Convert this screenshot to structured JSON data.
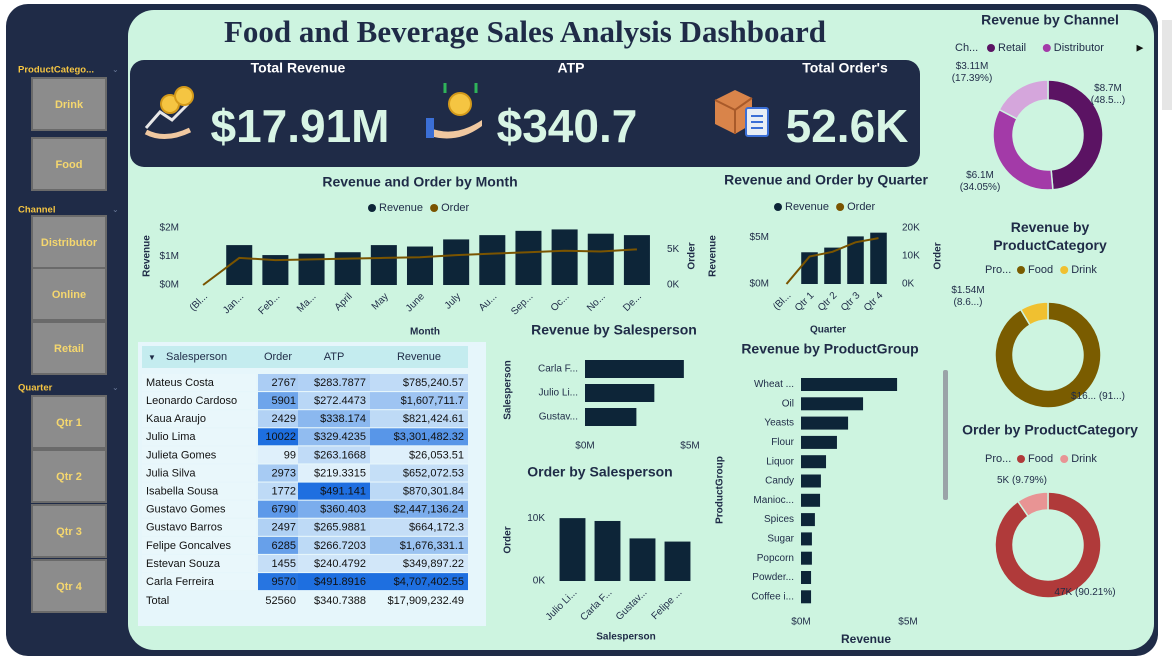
{
  "title": "Food and Beverage Sales Analysis Dashboard",
  "kpis": [
    {
      "label": "Total Revenue",
      "value": "$17.91M"
    },
    {
      "label": "ATP",
      "value": "$340.7"
    },
    {
      "label": "Total Order's",
      "value": "52.6K"
    }
  ],
  "slicers": [
    {
      "title": "ProductCatego...",
      "items": [
        "Drink",
        "Food"
      ]
    },
    {
      "title": "Channel",
      "items": [
        "Distributor",
        "Online",
        "Retail"
      ]
    },
    {
      "title": "Quarter",
      "items": [
        "Qtr 1",
        "Qtr 2",
        "Qtr 3",
        "Qtr 4"
      ]
    }
  ],
  "table": {
    "columns": [
      "Salesperson",
      "Order",
      "ATP",
      "Revenue"
    ],
    "rows": [
      [
        "Mateus Costa",
        "2767",
        "$283.7877",
        "$785,240.57"
      ],
      [
        "Leonardo Cardoso",
        "5901",
        "$272.4473",
        "$1,607,711.7"
      ],
      [
        "Kaua Araujo",
        "2429",
        "$338.174",
        "$821,424.61"
      ],
      [
        "Julio Lima",
        "10022",
        "$329.4235",
        "$3,301,482.32"
      ],
      [
        "Julieta Gomes",
        "99",
        "$263.1668",
        "$26,053.51"
      ],
      [
        "Julia Silva",
        "2973",
        "$219.3315",
        "$652,072.53"
      ],
      [
        "Isabella Sousa",
        "1772",
        "$491.141",
        "$870,301.84"
      ],
      [
        "Gustavo Gomes",
        "6790",
        "$360.403",
        "$2,447,136.24"
      ],
      [
        "Gustavo Barros",
        "2497",
        "$265.9881",
        "$664,172.3"
      ],
      [
        "Felipe Goncalves",
        "6285",
        "$266.7203",
        "$1,676,331.1"
      ],
      [
        "Estevan Souza",
        "1455",
        "$240.4792",
        "$349,897.22"
      ],
      [
        "Carla Ferreira",
        "9570",
        "$491.8916",
        "$4,707,402.55"
      ]
    ],
    "total": [
      "Total",
      "52560",
      "$340.7388",
      "$17,909,232.49"
    ]
  },
  "chart_data": [
    {
      "type": "combo",
      "title": "Revenue and Order by Month",
      "categories": [
        "(Bl...",
        "Jan...",
        "Feb...",
        "Ma...",
        "April",
        "May",
        "June",
        "July",
        "Au...",
        "Sep...",
        "Oc...",
        "No...",
        "De..."
      ],
      "series": [
        {
          "name": "Revenue",
          "type": "bar",
          "color": "#0d2538",
          "values": [
            null,
            1400000,
            1050000,
            1100000,
            1150000,
            1400000,
            1350000,
            1600000,
            1750000,
            1900000,
            1950000,
            1800000,
            1750000
          ]
        },
        {
          "name": "Order",
          "type": "line",
          "axis": "y2",
          "color": "#7a5400",
          "values": [
            0,
            3800,
            3500,
            3600,
            3700,
            3800,
            3900,
            4200,
            4400,
            4600,
            4800,
            4700,
            5000
          ]
        }
      ],
      "ylim": [
        0,
        2000000
      ],
      "yticks": [
        {
          "value": 0,
          "label": "$0M"
        },
        {
          "value": 1000000,
          "label": "$1M"
        },
        {
          "value": 2000000,
          "label": "$2M"
        }
      ],
      "y2lim": [
        0,
        8000
      ],
      "y2ticks": [
        {
          "value": 0,
          "label": "0K"
        },
        {
          "value": 5000,
          "label": "5K"
        }
      ],
      "x_label": "Month",
      "y_label": "Revenue",
      "y2_label": "Order",
      "grid": false
    },
    {
      "type": "combo",
      "title": "Revenue and Order by Quarter",
      "categories": [
        "(Bl...",
        "Qtr 1",
        "Qtr 2",
        "Qtr 3",
        "Qtr 4"
      ],
      "series": [
        {
          "name": "Revenue",
          "type": "bar",
          "color": "#0d2538",
          "values": [
            null,
            3400000,
            3900000,
            5100000,
            5500000
          ]
        },
        {
          "name": "Order",
          "type": "line",
          "axis": "y2",
          "color": "#7a5400",
          "values": [
            0,
            9800,
            11500,
            14900,
            16400
          ]
        }
      ],
      "ylim": [
        0,
        6000000
      ],
      "yticks": [
        {
          "value": 0,
          "label": "$0M"
        },
        {
          "value": 5000000,
          "label": "$5M"
        }
      ],
      "y2lim": [
        0,
        20000
      ],
      "y2ticks": [
        {
          "value": 0,
          "label": "0K"
        },
        {
          "value": 10000,
          "label": "10K"
        },
        {
          "value": 20000,
          "label": "20K"
        }
      ],
      "x_label": "Quarter",
      "y_label": "Revenue",
      "y2_label": "Order",
      "grid": false
    },
    {
      "type": "hbar",
      "title": "Revenue by Salesperson",
      "categories": [
        "Carla F...",
        "Julio Li...",
        "Gustav..."
      ],
      "values": [
        4707402.55,
        3301482.32,
        2447136.24
      ],
      "color": "#0d2538",
      "xlim": [
        0,
        5000000
      ],
      "xticks": [
        {
          "value": 0,
          "label": "$0M"
        },
        {
          "value": 5000000,
          "label": "$5M"
        }
      ],
      "y_label": "Salesperson",
      "grid": false
    },
    {
      "type": "bar",
      "title": "Order by Salesperson",
      "categories": [
        "Julio Li...",
        "Carla F...",
        "Gustav...",
        "Felipe ..."
      ],
      "values": [
        10022,
        9570,
        6790,
        6285
      ],
      "color": "#0d2538",
      "ylim": [
        0,
        11000
      ],
      "yticks": [
        {
          "value": 0,
          "label": "0K"
        },
        {
          "value": 10000,
          "label": "10K"
        }
      ],
      "x_label": "Salesperson",
      "y_label": "Order",
      "grid": false
    },
    {
      "type": "hbar",
      "title": "Revenue by ProductGroup",
      "categories": [
        "Wheat ...",
        "Oil",
        "Yeasts",
        "Flour",
        "Liquor",
        "Candy",
        "Manioc...",
        "Spices",
        "Sugar",
        "Popcorn",
        "Powder...",
        "Coffee i..."
      ],
      "values": [
        4490000,
        2900000,
        2200000,
        1680000,
        1170000,
        930000,
        890000,
        650000,
        510000,
        510000,
        470000,
        470000
      ],
      "color": "#0d2538",
      "xlim": [
        0,
        5000000
      ],
      "xticks": [
        {
          "value": 0,
          "label": "$0M"
        },
        {
          "value": 5000000,
          "label": "$5M"
        }
      ],
      "x_label": "Revenue",
      "y_label": "ProductGroup",
      "grid": false
    },
    {
      "type": "donut",
      "title": "Revenue by Channel",
      "legend_title": "Ch...",
      "categories": [
        "Retail",
        "Distributor",
        null
      ],
      "values": [
        8700000,
        6100000,
        3110000
      ],
      "value_labels": [
        "$8.7M (48.5...)",
        "$6.1M (34.05%)",
        "$3.11M (17.39%)"
      ],
      "colors": [
        "#5b1363",
        "#a33aa8",
        "#d5a6dc"
      ]
    },
    {
      "type": "donut",
      "title": "Revenue by ProductCategory",
      "legend_title": "Pro...",
      "categories": [
        "Food",
        "Drink"
      ],
      "values": [
        16370000,
        1540000
      ],
      "value_labels": [
        "$16... (91...)",
        "$1.54M (8.6...)"
      ],
      "colors": [
        "#7a5c00",
        "#f0c030"
      ]
    },
    {
      "type": "donut",
      "title": "Order by ProductCategory",
      "legend_title": "Pro...",
      "categories": [
        "Food",
        "Drink"
      ],
      "values": [
        47000,
        5000
      ],
      "value_labels": [
        "47K (90.21%)",
        "5K (9.79%)"
      ],
      "colors": [
        "#b03a3a",
        "#e89494"
      ]
    }
  ]
}
